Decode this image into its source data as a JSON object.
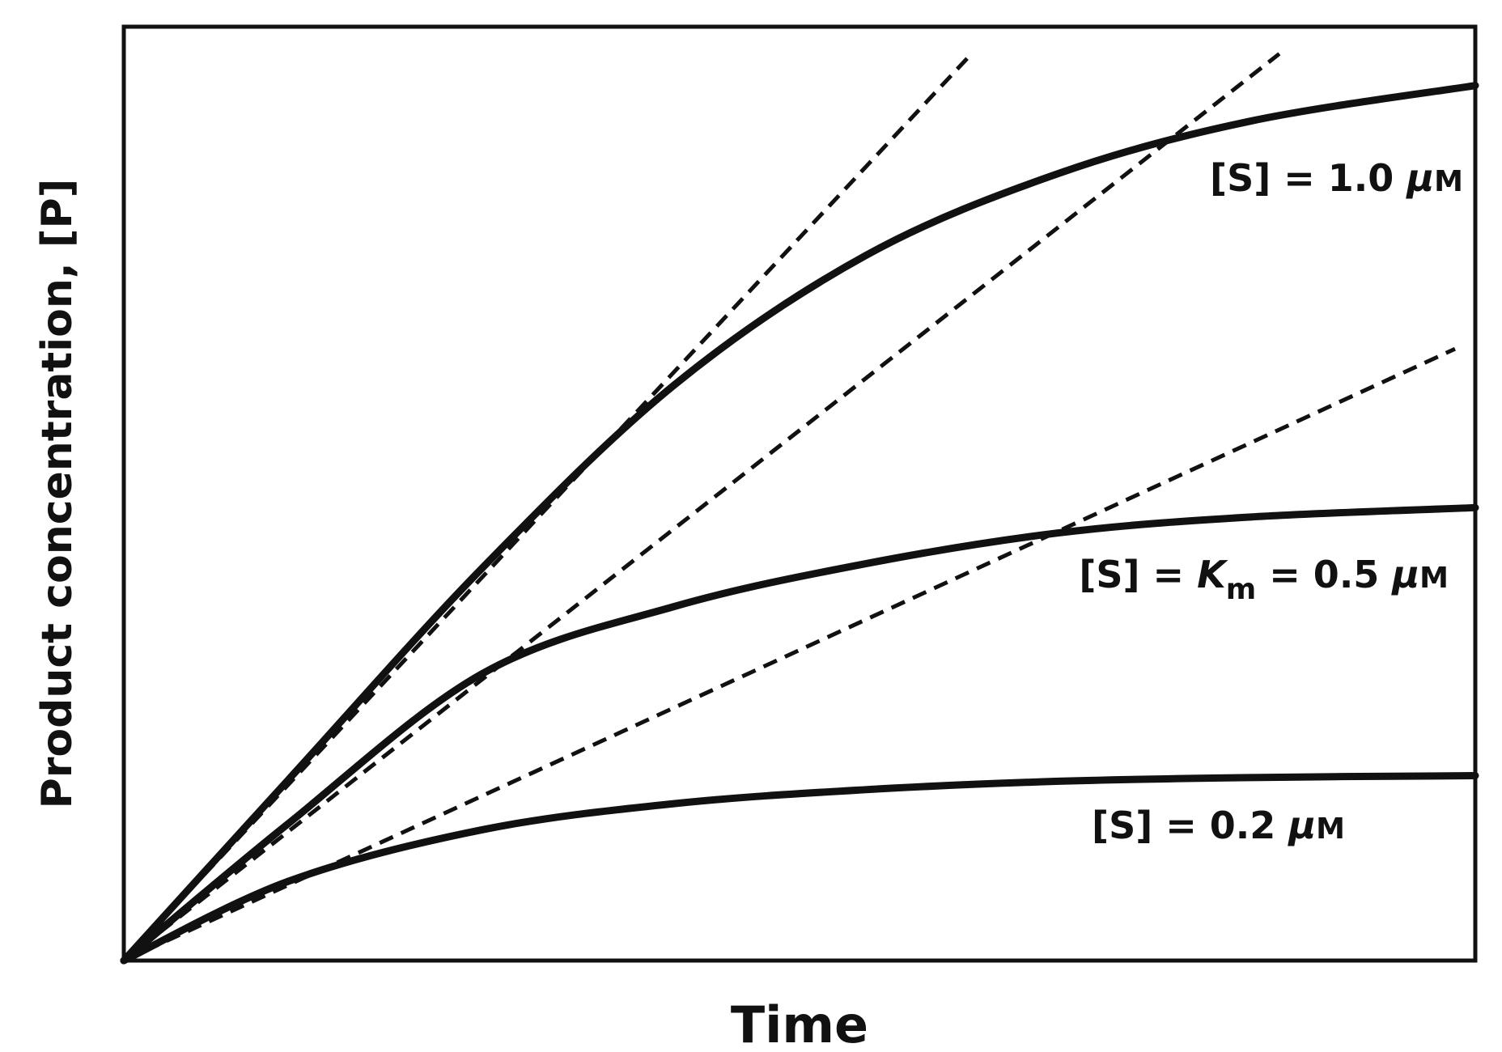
{
  "chart_data": {
    "type": "line",
    "title": "",
    "xlabel": "Time",
    "ylabel": "Product concentration, [P]",
    "xlim": [
      0,
      1
    ],
    "ylim": [
      0,
      1
    ],
    "grid": false,
    "legend": "inline labels at right",
    "series": [
      {
        "name": "[S] = 1.0 μM",
        "label_parts": [
          "[S] = 1.0 ",
          "μ",
          "M"
        ],
        "style": "solid",
        "x": [
          0,
          0.122,
          0.265,
          0.407,
          0.549,
          0.692,
          0.834,
          1.0
        ],
        "y": [
          0,
          0.194,
          0.42,
          0.616,
          0.755,
          0.843,
          0.899,
          0.937
        ]
      },
      {
        "name": "[S] = Km = 0.5 μM",
        "label_parts": [
          "[S] = ",
          "K",
          "m",
          " = 0.5 ",
          "μ",
          "M"
        ],
        "style": "solid",
        "x": [
          0,
          0.122,
          0.265,
          0.407,
          0.549,
          0.692,
          0.834,
          1.0
        ],
        "y": [
          0,
          0.147,
          0.307,
          0.379,
          0.425,
          0.458,
          0.475,
          0.485
        ]
      },
      {
        "name": "[S] = 0.2 μM",
        "label_parts": [
          "[S] = 0.2 ",
          "μ",
          "M"
        ],
        "style": "solid",
        "x": [
          0,
          0.122,
          0.265,
          0.407,
          0.549,
          0.692,
          0.834,
          1.0
        ],
        "y": [
          0,
          0.085,
          0.14,
          0.168,
          0.183,
          0.192,
          0.196,
          0.198
        ]
      }
    ],
    "tangents": [
      {
        "of": "[S] = 1.0 μM",
        "style": "dashed",
        "x": [
          0,
          0.624
        ],
        "y": [
          0,
          0.966
        ]
      },
      {
        "of": "[S] = Km = 0.5 μM",
        "style": "dashed",
        "x": [
          0,
          0.855
        ],
        "y": [
          0,
          0.971
        ]
      },
      {
        "of": "[S] = 0.2 μM",
        "style": "dashed",
        "x": [
          0,
          0.985
        ],
        "y": [
          0,
          0.655
        ]
      }
    ],
    "colors": {
      "line": "#111111",
      "background": "#ffffff"
    }
  }
}
